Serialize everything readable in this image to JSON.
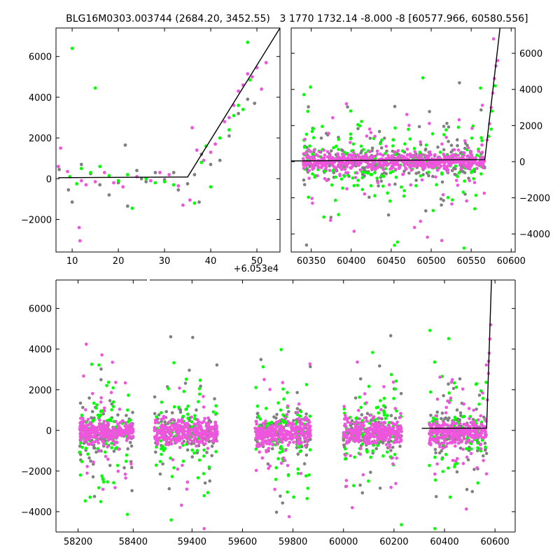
{
  "colors": {
    "green": "#00ff00",
    "magenta": "#ee55dd",
    "gray": "#808080",
    "model": "#000000"
  },
  "chart_data": [
    {
      "type": "scatter",
      "title": "BLG16M0303.003744 (2684.20, 3452.55)",
      "x_offset_label": "+6.053e4",
      "xlim": [
        6.5,
        55
      ],
      "ylim": [
        -3600,
        7400
      ],
      "xticks": [
        "10",
        "20",
        "30",
        "40",
        "50"
      ],
      "yticks": [
        "−2000",
        "0",
        "2000",
        "4000",
        "6000"
      ],
      "grid": false,
      "model_line": {
        "x": [
          7,
          35,
          55
        ],
        "y": [
          50,
          80,
          7400
        ]
      },
      "series": [
        {
          "color": "green",
          "points": [
            [
              10,
              6400
            ],
            [
              15,
              4450
            ],
            [
              9.5,
              100
            ],
            [
              11,
              -250
            ],
            [
              12,
              500
            ],
            [
              14,
              300
            ],
            [
              16,
              600
            ],
            [
              18,
              150
            ],
            [
              20,
              -100
            ],
            [
              22,
              200
            ],
            [
              23,
              -1450
            ],
            [
              26,
              0
            ],
            [
              28,
              -200
            ],
            [
              30,
              -150
            ],
            [
              32,
              -300
            ],
            [
              36.5,
              -1200
            ],
            [
              38,
              800
            ],
            [
              39,
              1600
            ],
            [
              40,
              -400
            ],
            [
              41,
              1700
            ],
            [
              42,
              2000
            ],
            [
              44,
              2400
            ],
            [
              45,
              3100
            ],
            [
              46,
              3600
            ],
            [
              47,
              3400
            ],
            [
              48,
              6700
            ],
            [
              48.5,
              4850
            ]
          ]
        },
        {
          "color": "magenta",
          "points": [
            [
              7.5,
              1500
            ],
            [
              7,
              600
            ],
            [
              9,
              350
            ],
            [
              11.5,
              -2400
            ],
            [
              11.7,
              -3050
            ],
            [
              12,
              -100
            ],
            [
              13,
              -300
            ],
            [
              15,
              -150
            ],
            [
              17,
              300
            ],
            [
              19,
              -200
            ],
            [
              21,
              -400
            ],
            [
              24,
              100
            ],
            [
              27,
              -100
            ],
            [
              29,
              300
            ],
            [
              31,
              200
            ],
            [
              33,
              -350
            ],
            [
              34,
              -1300
            ],
            [
              35.5,
              -1050
            ],
            [
              36,
              2500
            ],
            [
              37,
              1400
            ],
            [
              38.5,
              900
            ],
            [
              40,
              1300
            ],
            [
              41,
              1700
            ],
            [
              43,
              2800
            ],
            [
              44,
              3000
            ],
            [
              45,
              3600
            ],
            [
              46,
              4300
            ],
            [
              47,
              4600
            ],
            [
              48,
              5150
            ],
            [
              49,
              5000
            ],
            [
              50,
              5450
            ],
            [
              51,
              4400
            ],
            [
              52,
              5700
            ]
          ]
        },
        {
          "color": "gray",
          "points": [
            [
              7.2,
              450
            ],
            [
              9.2,
              -550
            ],
            [
              10,
              -1150
            ],
            [
              12,
              700
            ],
            [
              14,
              250
            ],
            [
              16,
              -300
            ],
            [
              18,
              -800
            ],
            [
              20,
              -200
            ],
            [
              21.5,
              1650
            ],
            [
              22,
              -1350
            ],
            [
              24,
              400
            ],
            [
              25,
              0
            ],
            [
              26,
              -150
            ],
            [
              28,
              300
            ],
            [
              30,
              -50
            ],
            [
              32,
              300
            ],
            [
              33,
              -550
            ],
            [
              35,
              -250
            ],
            [
              36.5,
              200
            ],
            [
              37.5,
              -1150
            ],
            [
              38,
              1200
            ],
            [
              40,
              700
            ],
            [
              42,
              900
            ],
            [
              44,
              2100
            ],
            [
              46,
              3200
            ],
            [
              48,
              3900
            ],
            [
              49.5,
              3700
            ]
          ]
        }
      ]
    },
    {
      "type": "scatter",
      "title": "3 1770 1732.14 -8.000 -8 [60577.966, 60580.556]",
      "xlim": [
        60325,
        60605
      ],
      "ylim": [
        -5000,
        7400
      ],
      "xticks": [
        "60350",
        "60400",
        "60450",
        "60500",
        "60550",
        "60600"
      ],
      "yticks": [
        "−4000",
        "−2000",
        "0",
        "2000",
        "4000",
        "6000"
      ],
      "grid": false,
      "model_line": {
        "x": [
          60325,
          60567,
          60586
        ],
        "y": [
          40,
          110,
          7400
        ]
      }
    },
    {
      "type": "scatter",
      "xlim": [
        58120,
        60680
      ],
      "ylim": [
        -5000,
        7400
      ],
      "xticks": [
        "58200",
        "58400",
        "59400",
        "59600",
        "59800",
        "60000",
        "60200",
        "60400",
        "60600"
      ],
      "yticks": [
        "−4000",
        "−2000",
        "0",
        "2000",
        "4000",
        "6000"
      ],
      "grid": false,
      "axis_break": [
        58450,
        59230
      ],
      "model_line": {
        "x": [
          60310,
          60567,
          60586
        ],
        "y": [
          100,
          110,
          7400
        ]
      }
    }
  ]
}
